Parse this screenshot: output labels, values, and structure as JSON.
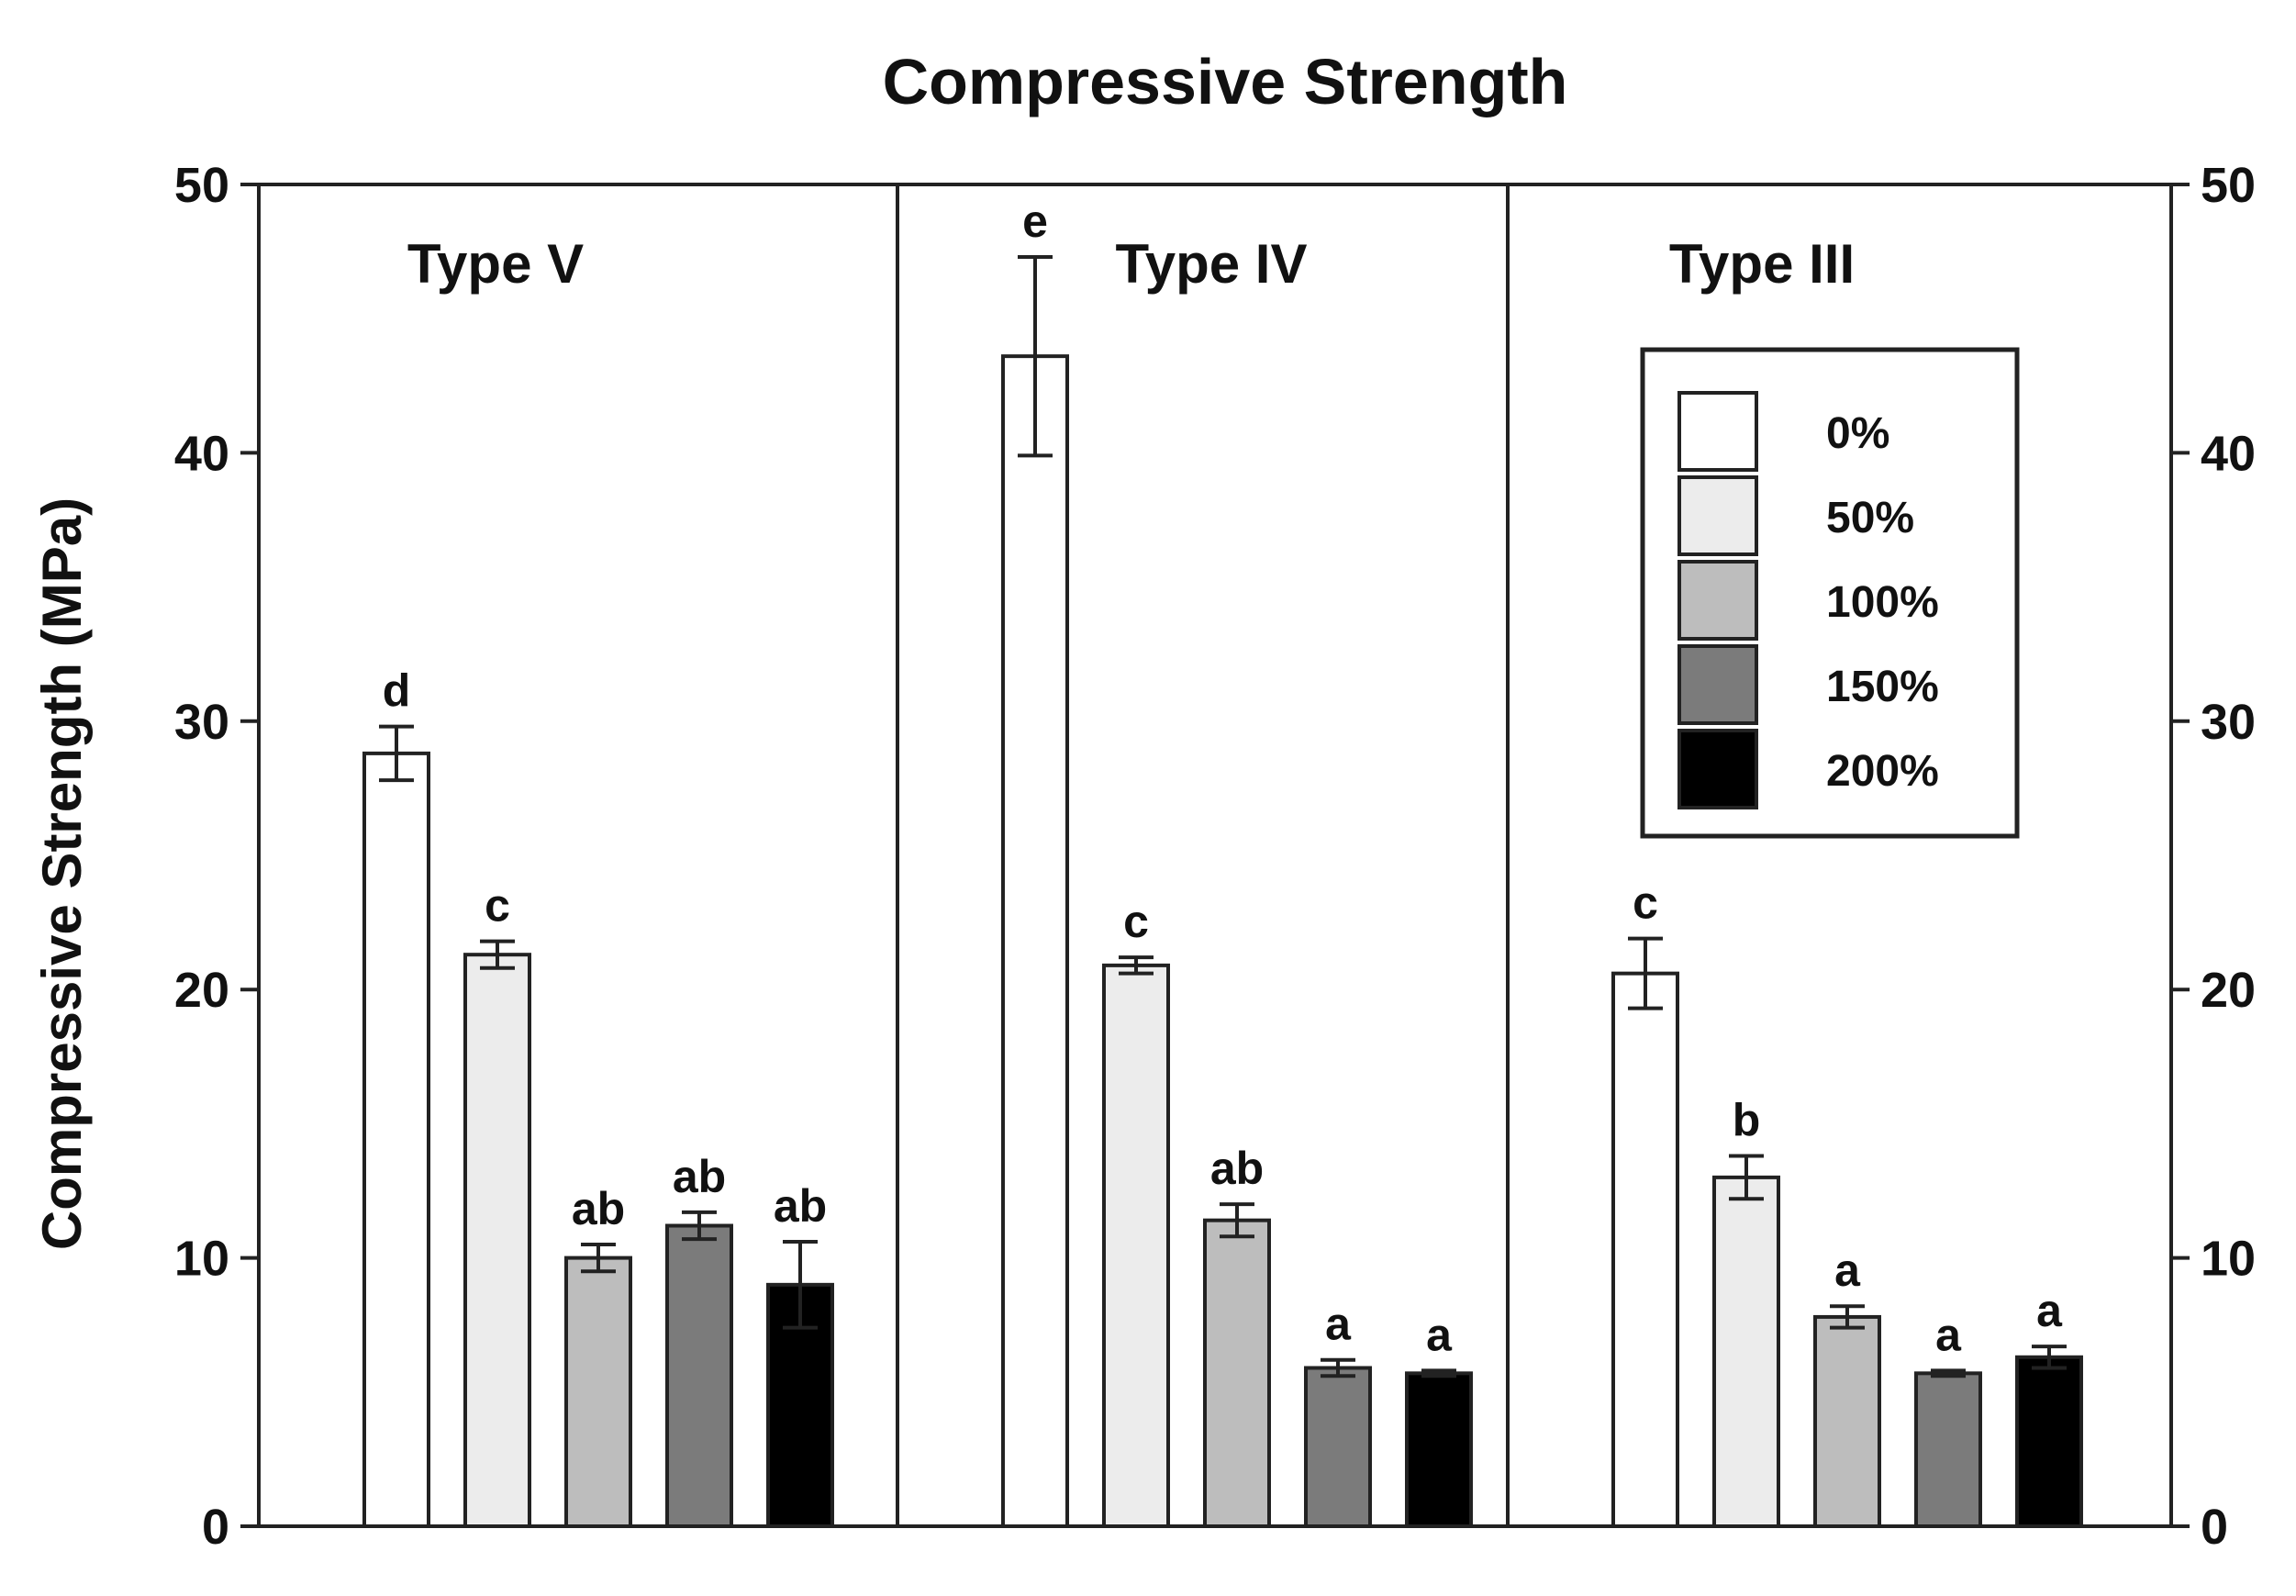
{
  "chart_data": {
    "type": "bar",
    "title": "Compressive Strength",
    "ylabel": "Compressive Strength (MPa)",
    "xlabel": "",
    "ylim": [
      0,
      50
    ],
    "yticks": [
      0,
      10,
      20,
      30,
      40,
      50
    ],
    "series_names": [
      "0%",
      "50%",
      "100%",
      "150%",
      "200%"
    ],
    "series_colors": [
      "#ffffff",
      "#ececec",
      "#bdbdbd",
      "#7b7b7b",
      "#000000"
    ],
    "legend_position": "top-right (inside Type III panel)",
    "groups": [
      {
        "name": "Type V",
        "values": [
          28.8,
          21.3,
          10.0,
          11.2,
          9.0
        ],
        "errors": [
          1.0,
          0.5,
          0.5,
          0.5,
          1.6
        ],
        "letters": [
          "d",
          "c",
          "ab",
          "ab",
          "ab"
        ]
      },
      {
        "name": "Type IV",
        "values": [
          43.6,
          20.9,
          11.4,
          5.9,
          5.7
        ],
        "errors": [
          3.7,
          0.3,
          0.6,
          0.3,
          0.1
        ],
        "letters": [
          "e",
          "c",
          "ab",
          "a",
          "a"
        ]
      },
      {
        "name": "Type III",
        "values": [
          20.6,
          13.0,
          7.8,
          5.7,
          6.3
        ],
        "errors": [
          1.3,
          0.8,
          0.4,
          0.1,
          0.4
        ],
        "letters": [
          "c",
          "b",
          "a",
          "a",
          "a"
        ]
      }
    ]
  }
}
